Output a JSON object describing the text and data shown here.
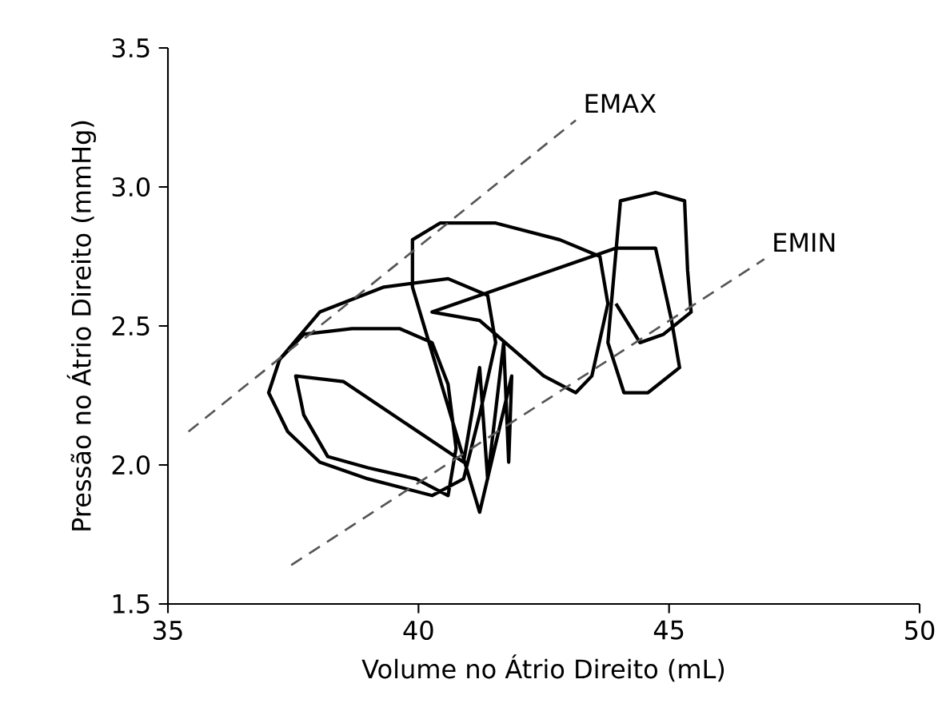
{
  "chart_data": {
    "type": "line",
    "xlabel": "Volume no Átrio Direito (mL)",
    "ylabel": "Pressão no Átrio Direito (mmHg)",
    "xlim": [
      35,
      50
    ],
    "xticks": [
      35,
      40,
      45,
      50
    ],
    "ylim": [
      1.5,
      3.5
    ],
    "yticks": [
      1.5,
      {
        "value": 2,
        "label": "2.0"
      },
      2.5,
      {
        "value": 3,
        "label": "3.0"
      },
      3.5
    ],
    "series": [
      {
        "color": "#000000",
        "line_style": "solid",
        "x": [
          37.23,
          38.03,
          39.31,
          40.59,
          41.38,
          41.54,
          41.22,
          40.9,
          40.27,
          38.99,
          38.03,
          37.39,
          37.01,
          37.23,
          37.71,
          38.67,
          39.63,
          40.27,
          40.59,
          40.75,
          40.59,
          39.95,
          38.99,
          38.19,
          37.71,
          37.55,
          38.5,
          40.9,
          41.22,
          41.38,
          41.7,
          41.8,
          41.86,
          41.22,
          39.88,
          39.88,
          40.43,
          41.54,
          42.82,
          43.62,
          43.78,
          43.46,
          43.14,
          42.5,
          41.22,
          40.27,
          43.94,
          44.73,
          45.05,
          45.21,
          44.58,
          44.1,
          43.78,
          44.03,
          44.73,
          45.31,
          45.37,
          45.44,
          44.89,
          44.42,
          43.94
        ],
        "values": [
          2.38,
          2.55,
          2.64,
          2.67,
          2.61,
          2.44,
          2.18,
          1.95,
          1.89,
          1.95,
          2.01,
          2.12,
          2.26,
          2.38,
          2.47,
          2.49,
          2.49,
          2.44,
          2.29,
          2.06,
          1.89,
          1.95,
          1.99,
          2.03,
          2.18,
          2.32,
          2.3,
          2.01,
          2.35,
          1.95,
          2.44,
          2.01,
          2.32,
          1.83,
          2.64,
          2.81,
          2.87,
          2.87,
          2.81,
          2.75,
          2.58,
          2.32,
          2.26,
          2.32,
          2.52,
          2.55,
          2.78,
          2.78,
          2.52,
          2.35,
          2.26,
          2.26,
          2.44,
          2.95,
          2.98,
          2.95,
          2.7,
          2.55,
          2.47,
          2.44,
          2.58
        ]
      },
      {
        "name": "EMAX",
        "color": "#555555",
        "line_style": "dashed",
        "x": [
          35.41,
          43.14
        ],
        "values": [
          2.12,
          3.24
        ]
      },
      {
        "name": "EMIN",
        "color": "#555555",
        "line_style": "dashed",
        "x": [
          37.46,
          46.9
        ],
        "values": [
          1.64,
          2.74
        ]
      }
    ]
  }
}
